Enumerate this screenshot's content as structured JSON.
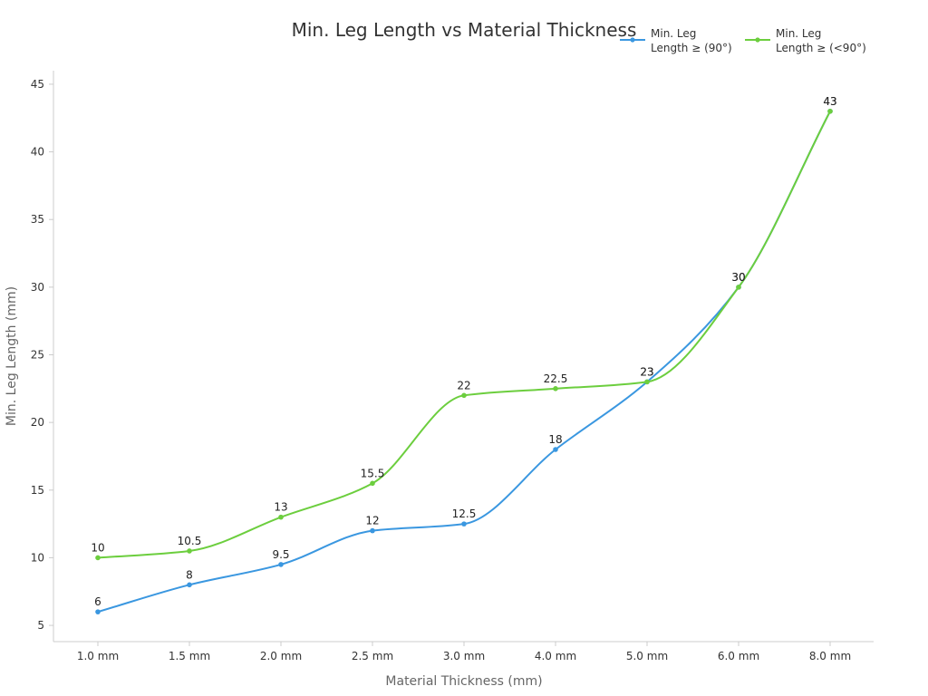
{
  "chart_data": {
    "type": "line",
    "title": "Min. Leg Length vs Material Thickness",
    "xlabel": "Material Thickness (mm)",
    "ylabel": "Min. Leg Length (mm)",
    "categories": [
      "1.0 mm",
      "1.5 mm",
      "2.0 mm",
      "2.5 mm",
      "3.0 mm",
      "4.0 mm",
      "5.0 mm",
      "6.0 mm",
      "8.0 mm"
    ],
    "ylim": [
      3.8,
      46
    ],
    "yticks": [
      5,
      10,
      15,
      20,
      25,
      30,
      35,
      40,
      45
    ],
    "grid": false,
    "legend_position": "top-right",
    "series": [
      {
        "name": "Min. Leg Length ≥ (90°)",
        "legend_lines": [
          "Min. Leg",
          "Length ≥ (90°)"
        ],
        "color": "#3a97e0",
        "values": [
          6,
          8,
          9.5,
          12,
          12.5,
          18,
          23,
          30,
          43
        ],
        "labels": [
          "6",
          "8",
          "9.5",
          "12",
          "12.5",
          "18",
          "23",
          "30",
          "43"
        ]
      },
      {
        "name": "Min. Leg Length ≥ (<90°)",
        "legend_lines": [
          "Min. Leg",
          "Length ≥ (<90°)"
        ],
        "color": "#6cce3e",
        "values": [
          10,
          10.5,
          13,
          15.5,
          22,
          22.5,
          23,
          30,
          43
        ],
        "labels": [
          "10",
          "10.5",
          "13",
          "15.5",
          "22",
          "22.5",
          "23",
          "30",
          "43"
        ]
      }
    ]
  }
}
